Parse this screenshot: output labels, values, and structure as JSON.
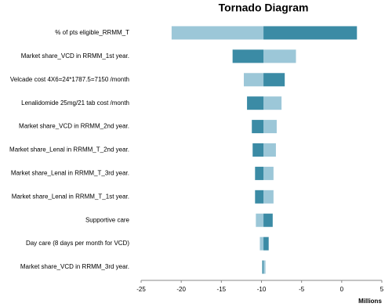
{
  "chart_data": {
    "type": "tornado",
    "title": "Tornado Diagram",
    "x_label": "Millions",
    "categories": [
      "% of pts eligible_RRMM_T",
      "Market share_VCD in RRMM_1st year.",
      "Velcade cost 4X6=24*1787.5=7150 /month",
      "Lenalidomide 25mg/21 tab cost /month",
      "Market share_VCD in RRMM_2nd year.",
      "Market share_Lenal in RRMM_T_2nd year.",
      "Market share_Lenal in RRMM_T_3rd  year.",
      "Market share_Lenal in RRMM_T_1st year.",
      "Supportive care",
      "Day care (8 days per month for VCD)",
      "Market share_VCD in RRMM_3rd year."
    ],
    "base": -9.75,
    "series": [
      {
        "color": "#9cc7d8",
        "values": [
          -21.2,
          -5.7,
          -12.2,
          -7.5,
          -8.1,
          -8.2,
          -8.5,
          -8.5,
          -10.7,
          -10.2,
          -9.5
        ]
      },
      {
        "color": "#3b8ba5",
        "values": [
          1.9,
          -13.6,
          -7.1,
          -11.8,
          -11.2,
          -11.1,
          -10.8,
          -10.8,
          -8.6,
          -9.1,
          -9.9
        ]
      }
    ],
    "xlim": [
      -25,
      5
    ],
    "xticks": [
      -25,
      -20,
      -15,
      -10,
      -5,
      0,
      5
    ]
  }
}
